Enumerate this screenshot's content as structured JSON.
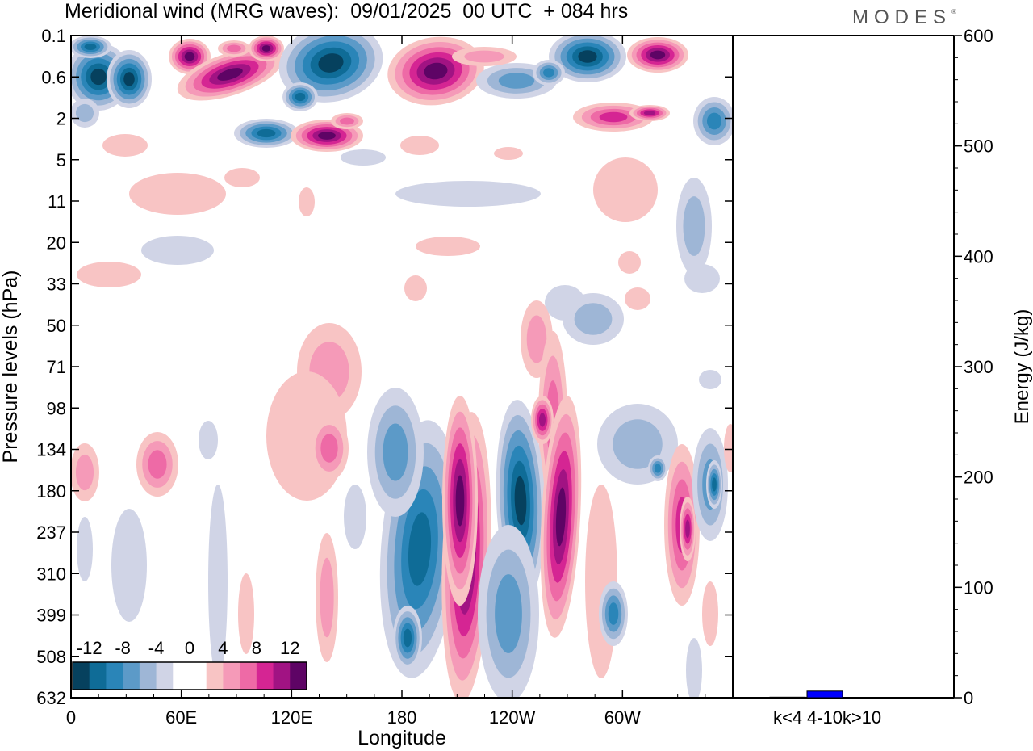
{
  "header": {
    "title": "Meridional wind (MRG waves):  09/01/2025  00 UTC  + 084 hrs",
    "logo": "MODES",
    "logo_mark": "®"
  },
  "chart_data": [
    {
      "type": "heatmap",
      "title": "Meridional wind (MRG waves)",
      "xlabel": "Longitude",
      "ylabel": "Pressure levels (hPa)",
      "x_ticks": [
        "0",
        "60E",
        "120E",
        "180",
        "120W",
        "60W"
      ],
      "y_ticks": [
        "0.1",
        "0.6",
        "2",
        "5",
        "11",
        "20",
        "33",
        "50",
        "71",
        "98",
        "134",
        "180",
        "237",
        "310",
        "399",
        "508",
        "632"
      ],
      "colorbar": {
        "tick_labels": [
          "-12",
          "-8",
          "-4",
          "0",
          "4",
          "8",
          "12"
        ],
        "colors": [
          "#06415e",
          "#0f6c97",
          "#2a85b8",
          "#5c9ac8",
          "#9eb6d6",
          "#d0d4e6",
          "#ffffff",
          "#ffffff",
          "#f8c4c4",
          "#f59ab8",
          "#ee6aa6",
          "#d52593",
          "#a11383",
          "#5e0465"
        ]
      }
    },
    {
      "type": "bar",
      "ylabel": "Energy (J/kg)",
      "ylim": [
        0,
        600
      ],
      "y_ticks": [
        "0",
        "100",
        "200",
        "300",
        "400",
        "500",
        "600"
      ],
      "categories": [
        "k<4",
        "4-10",
        "k>10"
      ],
      "values": [
        0.5,
        6,
        0.3
      ],
      "bar_color": "#0000ff"
    }
  ]
}
